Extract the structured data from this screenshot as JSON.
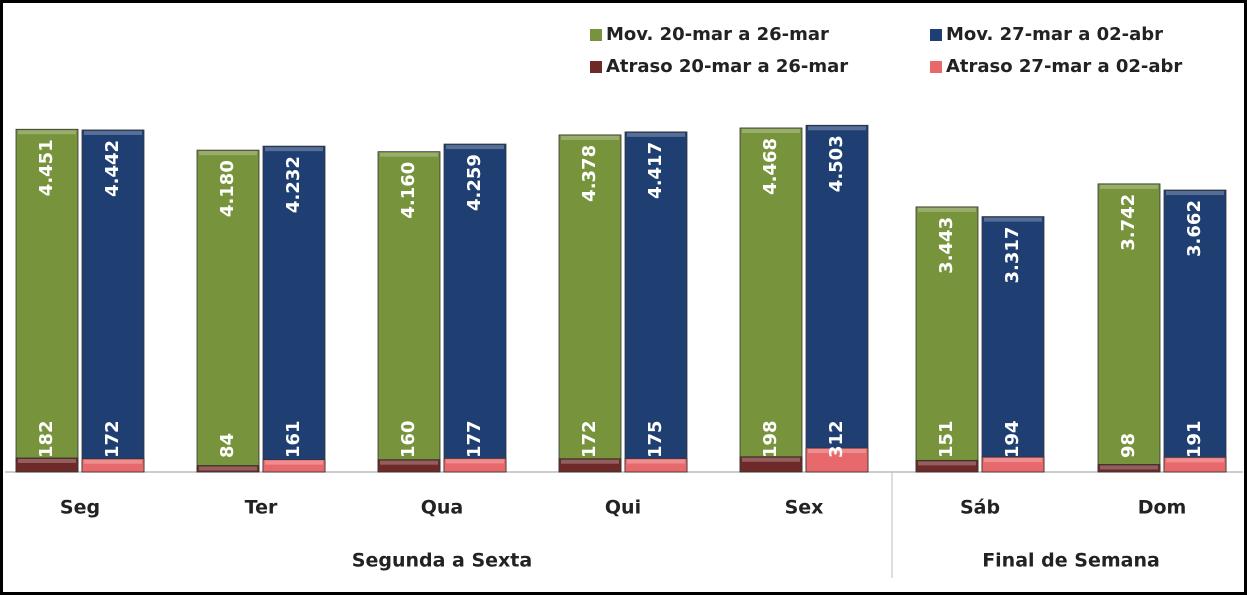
{
  "chart_data": {
    "type": "bar",
    "categories": [
      "Seg",
      "Ter",
      "Qua",
      "Qui",
      "Sex",
      "Sáb",
      "Dom"
    ],
    "groups": [
      {
        "name": "Segunda a Sexta",
        "count": 5
      },
      {
        "name": "Final de Semana",
        "count": 2
      }
    ],
    "ylim": [
      0,
      6000
    ],
    "series": [
      {
        "name": "Mov. 20-mar a 26-mar",
        "color": "#77933c",
        "slot": 0,
        "values": [
          4451,
          4180,
          4160,
          4378,
          4468,
          3443,
          3742
        ],
        "value_labels": [
          "4.451",
          "4.180",
          "4.160",
          "4.378",
          "4.468",
          "3.443",
          "3.742"
        ]
      },
      {
        "name": "Mov. 27-mar a 02-abr",
        "color": "#1f3f73",
        "slot": 1,
        "values": [
          4442,
          4232,
          4259,
          4417,
          4503,
          3317,
          3662
        ],
        "value_labels": [
          "4.442",
          "4.232",
          "4.259",
          "4.417",
          "4.503",
          "3.317",
          "3.662"
        ]
      },
      {
        "name": "Atraso 20-mar a 26-mar",
        "color": "#6e2a28",
        "slot": 0,
        "values": [
          182,
          84,
          160,
          172,
          198,
          151,
          98
        ]
      },
      {
        "name": "Atraso 27-mar a 02-abr",
        "color": "#e8696b",
        "slot": 1,
        "values": [
          172,
          161,
          177,
          175,
          312,
          194,
          191
        ]
      }
    ]
  }
}
